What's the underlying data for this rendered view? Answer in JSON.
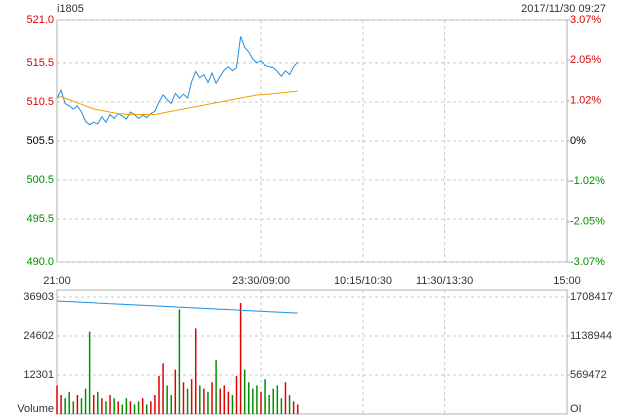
{
  "chart_data": [
    {
      "type": "line",
      "title": "i1805",
      "subtitle": "2017/11/30 09:27",
      "x": [
        0,
        3,
        6,
        9,
        12,
        15,
        18,
        21,
        24,
        27,
        30,
        33,
        36,
        39,
        42,
        45,
        48,
        51,
        54,
        57,
        60,
        63,
        66,
        69,
        72,
        75,
        78,
        81,
        84,
        87,
        90,
        93,
        96,
        99,
        102,
        105,
        108,
        111,
        114,
        117,
        120,
        123,
        126,
        129,
        132,
        135,
        138,
        141,
        144,
        147,
        150,
        153,
        156,
        159,
        162,
        165,
        168,
        171,
        174,
        177
      ],
      "xlim": [
        0,
        375
      ],
      "xticks": [
        {
          "value": 0,
          "label": "21:00"
        },
        {
          "value": 150,
          "label": "23:30/09:00"
        },
        {
          "value": 225,
          "label": "10:15/10:30"
        },
        {
          "value": 285,
          "label": "11:30/13:30"
        },
        {
          "value": 375,
          "label": "15:00"
        }
      ],
      "ylim": [
        490,
        521
      ],
      "yticks": [
        {
          "value": 521.0,
          "label": "521.0"
        },
        515.5,
        510.5,
        505.5,
        500.5,
        495.5,
        {
          "value": 490.0,
          "label": "490.0"
        }
      ],
      "y2lim": [
        -3.07,
        3.07
      ],
      "y2ticks": [
        {
          "value": 3.07,
          "label": "3.07%"
        },
        {
          "value": 2.05,
          "label": "2.05%"
        },
        {
          "value": 1.02,
          "label": "1.02%"
        },
        {
          "value": 0,
          "label": "0%"
        },
        {
          "value": -1.02,
          "label": "-1.02%"
        },
        {
          "value": -2.05,
          "label": "-2.05%"
        },
        {
          "value": -3.07,
          "label": "-3.07%"
        }
      ],
      "up_color": "#e00000",
      "down_color": "#009000",
      "grid": true,
      "series": [
        {
          "color": "#1f8fe0",
          "values": [
            511.0,
            512.0,
            510.3,
            510.0,
            509.6,
            510.0,
            509.2,
            508.0,
            507.6,
            507.9,
            507.7,
            508.6,
            507.9,
            508.9,
            508.4,
            509.0,
            508.7,
            508.3,
            509.2,
            508.9,
            508.4,
            508.8,
            508.5,
            509.0,
            509.3,
            510.5,
            511.4,
            510.8,
            510.3,
            511.6,
            511.0,
            511.5,
            511.0,
            513.1,
            514.4,
            513.6,
            514.0,
            513.0,
            514.2,
            512.9,
            513.8,
            514.6,
            515.0,
            514.5,
            514.9,
            518.9,
            517.5,
            516.9,
            516.0,
            515.5,
            515.8,
            515.2,
            515.0,
            514.9,
            514.4,
            513.8,
            514.5,
            514.0,
            515.0,
            515.6
          ]
        },
        {
          "color": "#f0a000",
          "values": [
            511.0,
            511.2,
            511.0,
            510.8,
            510.6,
            510.4,
            510.2,
            510.0,
            509.8,
            509.6,
            509.5,
            509.4,
            509.3,
            509.2,
            509.1,
            509.0,
            509.0,
            508.9,
            508.9,
            508.9,
            508.9,
            508.9,
            508.9,
            508.9,
            508.9,
            509.0,
            509.1,
            509.2,
            509.3,
            509.4,
            509.5,
            509.6,
            509.7,
            509.8,
            509.9,
            510.0,
            510.1,
            510.2,
            510.3,
            510.4,
            510.5,
            510.6,
            510.7,
            510.8,
            510.9,
            511.0,
            511.1,
            511.2,
            511.3,
            511.4,
            511.4,
            511.5,
            511.5,
            511.6,
            511.6,
            511.7,
            511.7,
            511.8,
            511.8,
            511.9
          ]
        }
      ]
    },
    {
      "type": "bar",
      "ylabel": "Volume",
      "y2label": "OI",
      "x": [
        0,
        3,
        6,
        9,
        12,
        15,
        18,
        21,
        24,
        27,
        30,
        33,
        36,
        39,
        42,
        45,
        48,
        51,
        54,
        57,
        60,
        63,
        66,
        69,
        72,
        75,
        78,
        81,
        84,
        87,
        90,
        93,
        96,
        99,
        102,
        105,
        108,
        111,
        114,
        117,
        120,
        123,
        126,
        129,
        132,
        135,
        138,
        141,
        144,
        147,
        150,
        153,
        156,
        159,
        162,
        165,
        168,
        171,
        174,
        177
      ],
      "xlim": [
        0,
        375
      ],
      "ylim": [
        0,
        36903
      ],
      "yticks": [
        12301,
        24602,
        36903
      ],
      "y2lim": [
        0,
        1708417
      ],
      "y2ticks": [
        569472,
        1138944,
        1708417
      ],
      "up_color": "#e00000",
      "down_color": "#009000",
      "grid": true,
      "series": [
        {
          "values": [
            9000,
            6000,
            5000,
            7000,
            4000,
            6000,
            5000,
            8000,
            26000,
            6000,
            7000,
            5000,
            4000,
            6000,
            5000,
            4000,
            3000,
            5000,
            4000,
            3000,
            4000,
            5000,
            3000,
            4000,
            6000,
            12000,
            16000,
            9000,
            6000,
            14000,
            33000,
            10000,
            8000,
            11000,
            27000,
            9000,
            8000,
            7000,
            10000,
            17000,
            8000,
            9000,
            7000,
            6000,
            12000,
            35000,
            14000,
            10000,
            8000,
            9000,
            7000,
            11000,
            6000,
            8000,
            9000,
            5000,
            10000,
            6000,
            4000,
            3000
          ]
        },
        {
          "axis": "y2",
          "color": "#1f8fe0",
          "values": [
            1650000,
            1647000,
            1644000,
            1641000,
            1638000,
            1635000,
            1632000,
            1629000,
            1626000,
            1623000,
            1620000,
            1617000,
            1614000,
            1611000,
            1608000,
            1605000,
            1602000,
            1599000,
            1596000,
            1593000,
            1590000,
            1587000,
            1584000,
            1581000,
            1578000,
            1575000,
            1572000,
            1569000,
            1566000,
            1563000,
            1560000,
            1557000,
            1554000,
            1551000,
            1548000,
            1545000,
            1542000,
            1539000,
            1536000,
            1533000,
            1530000,
            1527000,
            1524000,
            1521000,
            1518000,
            1515000,
            1512000,
            1509000,
            1506000,
            1503000,
            1500000,
            1497000,
            1494000,
            1491000,
            1488000,
            1485000,
            1482000,
            1479000,
            1476000,
            1473000
          ]
        }
      ]
    }
  ]
}
